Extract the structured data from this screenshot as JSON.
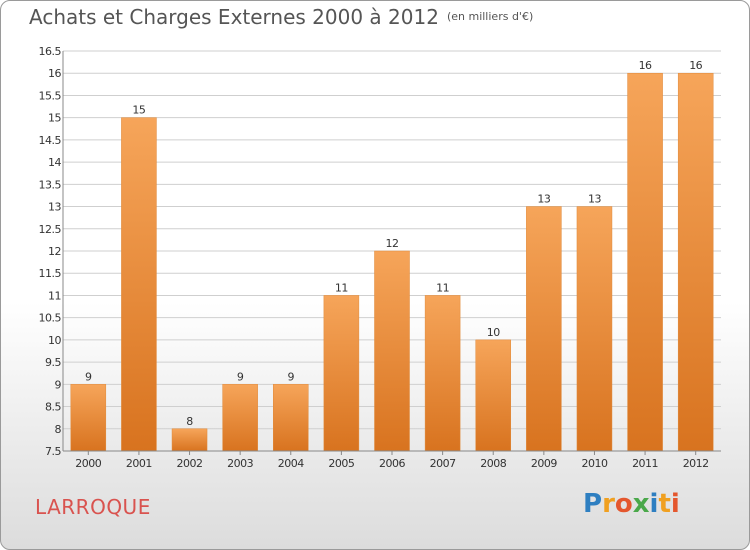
{
  "header": {
    "title": "Achats et Charges Externes 2000 à 2012",
    "subtitle": "(en milliers d'€)"
  },
  "footer": {
    "commune": "LARROQUE",
    "brand": "Proxiti"
  },
  "colors": {
    "bar_top": "#f6a55a",
    "bar_bottom": "#d8731f",
    "gridline": "#cfcfcf",
    "title": "#555555",
    "commune": "#d9534f"
  },
  "chart_data": {
    "type": "bar",
    "categories": [
      "2000",
      "2001",
      "2002",
      "2003",
      "2004",
      "2005",
      "2006",
      "2007",
      "2008",
      "2009",
      "2010",
      "2011",
      "2012"
    ],
    "values": [
      9,
      15,
      8,
      9,
      9,
      11,
      12,
      11,
      10,
      13,
      13,
      16,
      16
    ],
    "ylim": [
      7.5,
      16.5
    ],
    "yticks": [
      "7.5",
      "8",
      "8.5",
      "9",
      "9.5",
      "10",
      "10.5",
      "11",
      "11.5",
      "12",
      "12.5",
      "13",
      "13.5",
      "14",
      "14.5",
      "15",
      "15.5",
      "16",
      "16.5"
    ],
    "title": "Achats et Charges Externes 2000 à 2012",
    "subtitle": "(en milliers d'€)",
    "grid": true
  }
}
